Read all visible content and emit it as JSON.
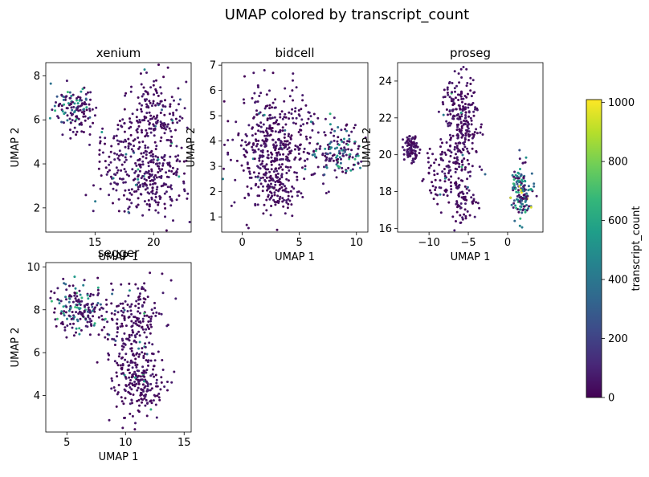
{
  "figure": {
    "suptitle": "UMAP colored by transcript_count"
  },
  "colorbar": {
    "label": "transcript_count",
    "range": [
      0,
      1010
    ],
    "ticks": [
      0,
      200,
      400,
      600,
      800,
      1000
    ],
    "colormap": [
      "#440154",
      "#482878",
      "#3e4a89",
      "#31688e",
      "#26828e",
      "#1f9e89",
      "#35b779",
      "#6ece58",
      "#b5de2b",
      "#fde725"
    ]
  },
  "chart_data": [
    {
      "type": "scatter",
      "title": "xenium",
      "xlabel": "UMAP 1",
      "ylabel": "UMAP 2",
      "xlim": [
        10.8,
        23.2
      ],
      "ylim": [
        0.9,
        8.6
      ],
      "xticks": [
        15,
        20
      ],
      "yticks": [
        2,
        4,
        6,
        8
      ],
      "clusters": [
        {
          "cx": 13.2,
          "cy": 6.5,
          "sx": 1.1,
          "sy": 0.6,
          "n": 130,
          "high": 0.35
        },
        {
          "cx": 20.0,
          "cy": 5.8,
          "sx": 1.6,
          "sy": 1.3,
          "n": 220,
          "high": 0.04
        },
        {
          "cx": 19.8,
          "cy": 3.2,
          "sx": 1.9,
          "sy": 1.0,
          "n": 230,
          "high": 0.03
        },
        {
          "cx": 16.5,
          "cy": 4.0,
          "sx": 1.2,
          "sy": 1.3,
          "n": 70,
          "high": 0.05
        }
      ]
    },
    {
      "type": "scatter",
      "title": "bidcell",
      "xlabel": "UMAP 1",
      "ylabel": "UMAP 2",
      "xlim": [
        -1.8,
        11.0
      ],
      "ylim": [
        0.4,
        7.1
      ],
      "xticks": [
        0,
        5,
        10
      ],
      "yticks": [
        1,
        2,
        3,
        4,
        5,
        6,
        7
      ],
      "clusters": [
        {
          "cx": 2.6,
          "cy": 3.8,
          "sx": 1.9,
          "sy": 1.3,
          "n": 420,
          "high": 0.02
        },
        {
          "cx": 3.0,
          "cy": 2.0,
          "sx": 1.2,
          "sy": 0.6,
          "n": 90,
          "high": 0.02
        },
        {
          "cx": 8.3,
          "cy": 3.6,
          "sx": 1.4,
          "sy": 0.7,
          "n": 160,
          "high": 0.4
        }
      ]
    },
    {
      "type": "scatter",
      "title": "proseg",
      "xlabel": "UMAP 1",
      "ylabel": "UMAP 2",
      "xlim": [
        -14.0,
        4.5
      ],
      "ylim": [
        15.8,
        25.0
      ],
      "xticks": [
        -10,
        -5,
        0
      ],
      "yticks": [
        16,
        18,
        20,
        22,
        24
      ],
      "clusters": [
        {
          "cx": -12.3,
          "cy": 20.3,
          "sx": 0.5,
          "sy": 0.4,
          "n": 90,
          "high": 0.0
        },
        {
          "cx": -6.0,
          "cy": 22.0,
          "sx": 1.4,
          "sy": 1.3,
          "n": 230,
          "high": 0.01
        },
        {
          "cx": -7.5,
          "cy": 19.0,
          "sx": 2.2,
          "sy": 1.0,
          "n": 120,
          "high": 0.02
        },
        {
          "cx": -5.8,
          "cy": 17.5,
          "sx": 1.0,
          "sy": 0.8,
          "n": 60,
          "high": 0.02
        },
        {
          "cx": 1.8,
          "cy": 18.0,
          "sx": 0.8,
          "sy": 0.8,
          "n": 150,
          "high": 0.6
        }
      ]
    },
    {
      "type": "scatter",
      "title": "segger",
      "xlabel": "UMAP 1",
      "ylabel": "UMAP 2",
      "xlim": [
        3.2,
        15.6
      ],
      "ylim": [
        2.3,
        10.2
      ],
      "xticks": [
        5,
        10,
        15
      ],
      "yticks": [
        4,
        6,
        8,
        10
      ],
      "clusters": [
        {
          "cx": 6.0,
          "cy": 8.0,
          "sx": 1.3,
          "sy": 0.7,
          "n": 180,
          "high": 0.3
        },
        {
          "cx": 10.5,
          "cy": 7.2,
          "sx": 1.6,
          "sy": 1.2,
          "n": 200,
          "high": 0.03
        },
        {
          "cx": 11.2,
          "cy": 4.6,
          "sx": 1.3,
          "sy": 1.0,
          "n": 200,
          "high": 0.02
        }
      ]
    }
  ]
}
